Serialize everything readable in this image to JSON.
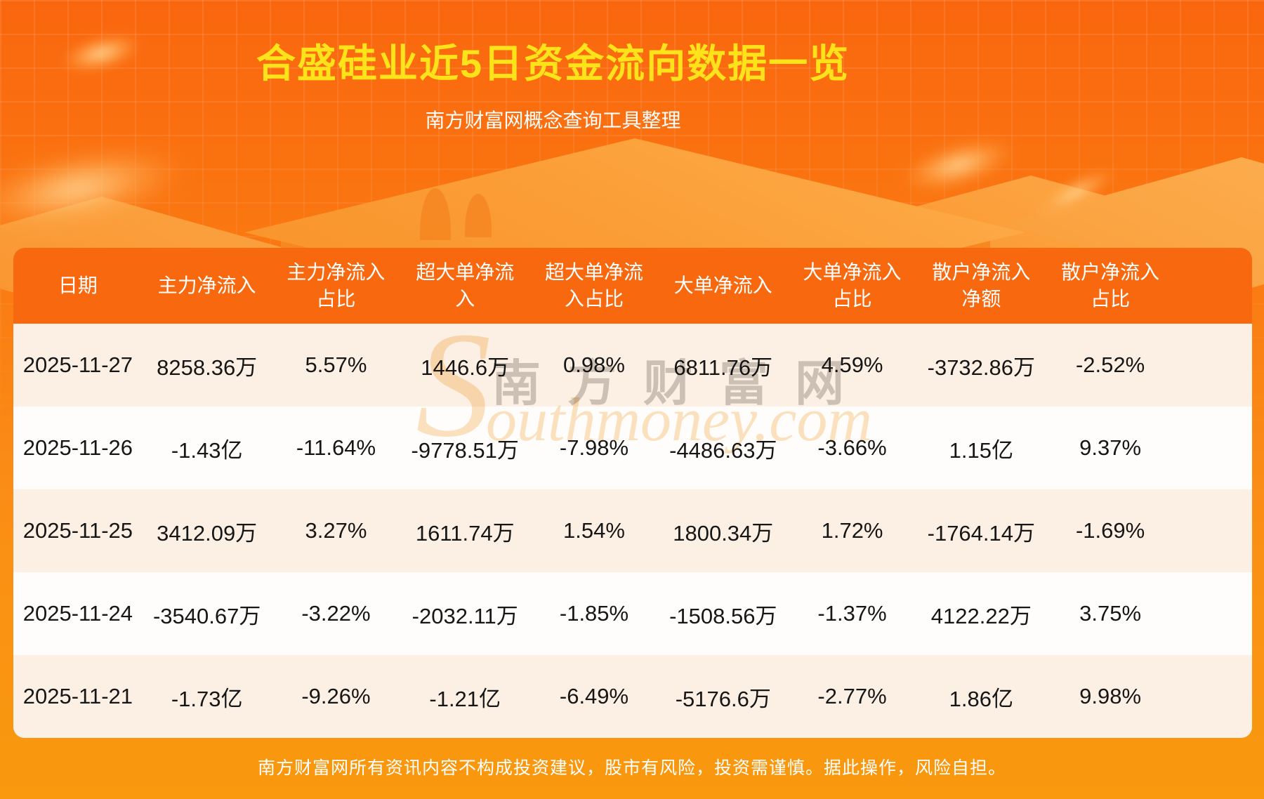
{
  "colors": {
    "title_yellow": "#ffe31a",
    "header_orange": "#f8680e",
    "bg_top": "#fa660e",
    "bg_bottom": "#f9990e",
    "row_cream": "#fcf0e4",
    "row_white": "#fffdfb"
  },
  "header": {
    "title": "合盛硅业近5日资金流向数据一览",
    "subtitle": "南方财富网概念查询工具整理"
  },
  "watermark": {
    "cjk": "南方财富网",
    "latin_initial": "S",
    "latin_rest": "outhmoney.com"
  },
  "table": {
    "columns": [
      "日期",
      "主力净流入",
      "主力净流入占比",
      "超大单净流入",
      "超大单净流入占比",
      "大单净流入",
      "大单净流入占比",
      "散户净流入净额",
      "散户净流入占比"
    ],
    "rows": [
      [
        "2025-11-27",
        "8258.36万",
        "5.57%",
        "1446.6万",
        "0.98%",
        "6811.76万",
        "4.59%",
        "-3732.86万",
        "-2.52%"
      ],
      [
        "2025-11-26",
        "-1.43亿",
        "-11.64%",
        "-9778.51万",
        "-7.98%",
        "-4486.63万",
        "-3.66%",
        "1.15亿",
        "9.37%"
      ],
      [
        "2025-11-25",
        "3412.09万",
        "3.27%",
        "1611.74万",
        "1.54%",
        "1800.34万",
        "1.72%",
        "-1764.14万",
        "-1.69%"
      ],
      [
        "2025-11-24",
        "-3540.67万",
        "-3.22%",
        "-2032.11万",
        "-1.85%",
        "-1508.56万",
        "-1.37%",
        "4122.22万",
        "3.75%"
      ],
      [
        "2025-11-21",
        "-1.73亿",
        "-9.26%",
        "-1.21亿",
        "-6.49%",
        "-5176.6万",
        "-2.77%",
        "1.86亿",
        "9.98%"
      ]
    ]
  },
  "footer": {
    "disclaimer": "南方财富网所有资讯内容不构成投资建议，股市有风险，投资需谨慎。据此操作，风险自担。"
  },
  "chart_data": {
    "type": "table",
    "title": "合盛硅业近5日资金流向数据一览",
    "subtitle": "南方财富网概念查询工具整理",
    "columns": [
      "日期",
      "主力净流入",
      "主力净流入占比",
      "超大单净流入",
      "超大单净流入占比",
      "大单净流入",
      "大单净流入占比",
      "散户净流入净额",
      "散户净流入占比"
    ],
    "rows": [
      [
        "2025-11-27",
        "8258.36万",
        "5.57%",
        "1446.6万",
        "0.98%",
        "6811.76万",
        "4.59%",
        "-3732.86万",
        "-2.52%"
      ],
      [
        "2025-11-26",
        "-1.43亿",
        "-11.64%",
        "-9778.51万",
        "-7.98%",
        "-4486.63万",
        "-3.66%",
        "1.15亿",
        "9.37%"
      ],
      [
        "2025-11-25",
        "3412.09万",
        "3.27%",
        "1611.74万",
        "1.54%",
        "1800.34万",
        "1.72%",
        "-1764.14万",
        "-1.69%"
      ],
      [
        "2025-11-24",
        "-3540.67万",
        "-3.22%",
        "-2032.11万",
        "-1.85%",
        "-1508.56万",
        "-1.37%",
        "4122.22万",
        "3.75%"
      ],
      [
        "2025-11-21",
        "-1.73亿",
        "-9.26%",
        "-1.21亿",
        "-6.49%",
        "-5176.6万",
        "-2.77%",
        "1.86亿",
        "9.98%"
      ]
    ],
    "layout_hints": {
      "row_striping": [
        "cream",
        "white"
      ],
      "header_style": "orange band, white text",
      "units": "万 = 10k CNY, 亿 = 100M CNY"
    }
  }
}
